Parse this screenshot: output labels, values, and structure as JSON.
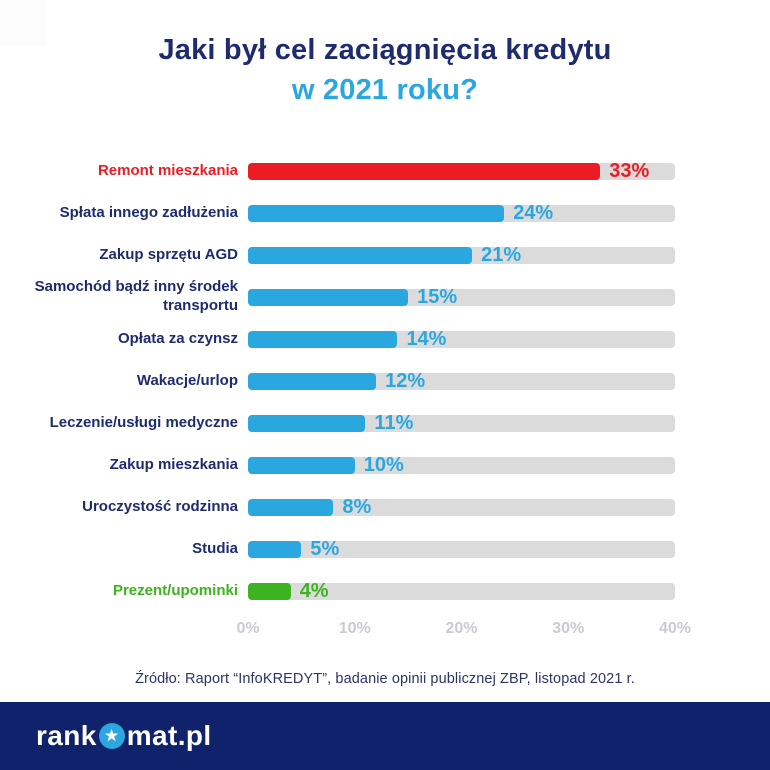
{
  "title": {
    "line1": "Jaki był cel zaciągnięcia kredytu",
    "line2": "w 2021 roku?"
  },
  "chart_data": {
    "type": "bar",
    "orientation": "horizontal",
    "title": "Jaki był cel zaciągnięcia kredytu w 2021 roku?",
    "unit": "%",
    "xlim": [
      0,
      40
    ],
    "grid": false,
    "legend": false,
    "track_color": "#dbdbdb",
    "categories": [
      "Remont mieszkania",
      "Spłata innego zadłużenia",
      "Zakup sprzętu AGD",
      "Samochód bądź inny środek transportu",
      "Opłata za czynsz",
      "Wakacje/urlop",
      "Leczenie/usługi medyczne",
      "Zakup mieszkania",
      "Uroczystość rodzinna",
      "Studia",
      "Prezent/upominki"
    ],
    "values": [
      33,
      24,
      21,
      15,
      14,
      12,
      11,
      10,
      8,
      5,
      4
    ],
    "bars": [
      {
        "label": "Remont mieszkania",
        "value": 33,
        "display": "33%",
        "bar_color": "#ec1c24",
        "label_color": "#ec1c24",
        "value_color": "#ec1c24"
      },
      {
        "label": "Spłata innego zadłużenia",
        "value": 24,
        "display": "24%",
        "bar_color": "#2ba7e0",
        "label_color": "#1e2c6e",
        "value_color": "#2ba7e0"
      },
      {
        "label": "Zakup sprzętu AGD",
        "value": 21,
        "display": "21%",
        "bar_color": "#2ba7e0",
        "label_color": "#1e2c6e",
        "value_color": "#2ba7e0"
      },
      {
        "label": "Samochód bądź inny środek transportu",
        "value": 15,
        "display": "15%",
        "bar_color": "#2ba7e0",
        "label_color": "#1e2c6e",
        "value_color": "#2ba7e0"
      },
      {
        "label": "Opłata za czynsz",
        "value": 14,
        "display": "14%",
        "bar_color": "#2ba7e0",
        "label_color": "#1e2c6e",
        "value_color": "#2ba7e0"
      },
      {
        "label": "Wakacje/urlop",
        "value": 12,
        "display": "12%",
        "bar_color": "#2ba7e0",
        "label_color": "#1e2c6e",
        "value_color": "#2ba7e0"
      },
      {
        "label": "Leczenie/usługi medyczne",
        "value": 11,
        "display": "11%",
        "bar_color": "#2ba7e0",
        "label_color": "#1e2c6e",
        "value_color": "#2ba7e0"
      },
      {
        "label": "Zakup mieszkania",
        "value": 10,
        "display": "10%",
        "bar_color": "#2ba7e0",
        "label_color": "#1e2c6e",
        "value_color": "#2ba7e0"
      },
      {
        "label": "Uroczystość rodzinna",
        "value": 8,
        "display": "8%",
        "bar_color": "#2ba7e0",
        "label_color": "#1e2c6e",
        "value_color": "#2ba7e0"
      },
      {
        "label": "Studia",
        "value": 5,
        "display": "5%",
        "bar_color": "#2ba7e0",
        "label_color": "#1e2c6e",
        "value_color": "#2ba7e0"
      },
      {
        "label": "Prezent/upominki",
        "value": 4,
        "display": "4%",
        "bar_color": "#3eb321",
        "label_color": "#3eb321",
        "value_color": "#3eb321"
      }
    ],
    "x_ticks": [
      {
        "label": "0%",
        "value": 0
      },
      {
        "label": "10%",
        "value": 10
      },
      {
        "label": "20%",
        "value": 20
      },
      {
        "label": "30%",
        "value": 30
      },
      {
        "label": "40%",
        "value": 40
      }
    ]
  },
  "source_note": "Źródło: Raport “InfoKREDYT”, badanie opinii publicznej ZBP, listopad 2021 r.",
  "footer": {
    "logo_prefix": "rank",
    "logo_suffix": "mat.pl",
    "logo_star_icon": "star-in-circle",
    "background_color": "#10226b",
    "star_color": "#2ba7e0"
  },
  "colors": {
    "title_primary": "#1e2c6e",
    "title_accent": "#2ba7e0",
    "highlight_max": "#ec1c24",
    "highlight_min": "#3eb321",
    "default_bar": "#2ba7e0",
    "track": "#dbdbdb",
    "axis_ticks": "#c9cbd1"
  }
}
